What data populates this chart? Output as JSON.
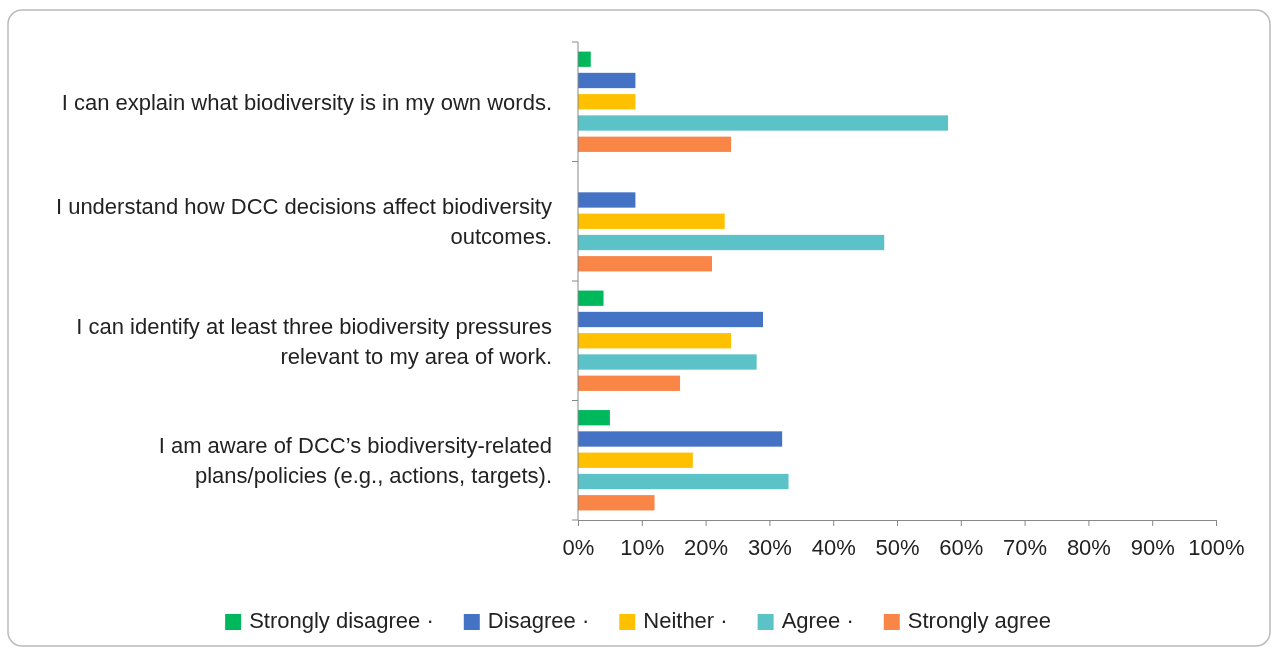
{
  "chart_data": {
    "type": "bar",
    "orientation": "horizontal",
    "categories": [
      "I can explain what biodiversity is in my own words.",
      "I understand how DCC decisions affect biodiversity outcomes.",
      "I can identify at least three biodiversity pressures relevant to my area of work.",
      "I am aware of DCC’s biodiversity-related plans/policies (e.g., actions, targets)."
    ],
    "series": [
      {
        "name": "Strongly disagree ·",
        "color": "#00b85c",
        "values": [
          2,
          0,
          4,
          5
        ]
      },
      {
        "name": "Disagree ·",
        "color": "#4472c4",
        "values": [
          9,
          9,
          29,
          32
        ]
      },
      {
        "name": "Neither ·",
        "color": "#ffc000",
        "values": [
          9,
          23,
          24,
          18
        ]
      },
      {
        "name": "Agree ·",
        "color": "#5bc2c8",
        "values": [
          58,
          48,
          28,
          33
        ]
      },
      {
        "name": "Strongly agree",
        "color": "#f98546",
        "values": [
          24,
          21,
          16,
          12
        ]
      }
    ],
    "xlim": [
      0,
      100
    ],
    "xticks": [
      {
        "value": 0,
        "label": "0%"
      },
      {
        "value": 10,
        "label": "10%"
      },
      {
        "value": 20,
        "label": "20%"
      },
      {
        "value": 30,
        "label": "30%"
      },
      {
        "value": 40,
        "label": "40%"
      },
      {
        "value": 50,
        "label": "50%"
      },
      {
        "value": 60,
        "label": "60%"
      },
      {
        "value": 70,
        "label": "70%"
      },
      {
        "value": 80,
        "label": "80%"
      },
      {
        "value": 90,
        "label": "90%"
      },
      {
        "value": 100,
        "label": "100%"
      }
    ],
    "grid": false,
    "legend": "bottom"
  }
}
